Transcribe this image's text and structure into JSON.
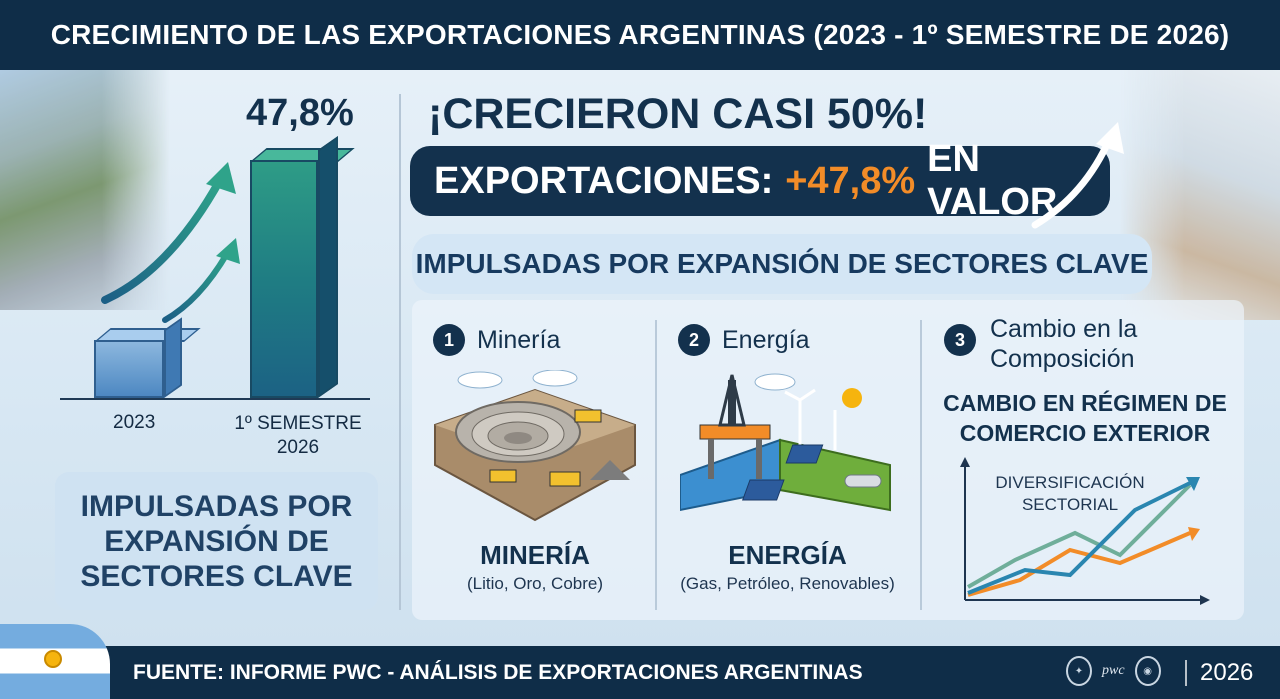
{
  "header": {
    "title": "CRECIMIENTO DE LAS EXPORTACIONES ARGENTINAS (2023 - 1º SEMESTRE DE 2026)"
  },
  "left_chart": {
    "value_label": "47,8%",
    "bars": [
      {
        "label": "2023"
      },
      {
        "label": "1º SEMESTRE 2026"
      }
    ],
    "box_text": "IMPULSADAS POR EXPANSIÓN DE SECTORES CLAVE"
  },
  "headline": "¡CRECIERON CASI 50%!",
  "exports_pill": {
    "prefix": "EXPORTACIONES:",
    "value": "+47,8%",
    "suffix": "EN VALOR"
  },
  "sectors_banner": "IMPULSADAS POR EXPANSIÓN DE SECTORES CLAVE",
  "sectors": [
    {
      "num": "1",
      "title": "Minería",
      "name": "MINERÍA",
      "sub": "(Litio, Oro, Cobre)"
    },
    {
      "num": "2",
      "title": "Energía",
      "name": "ENERGÍA",
      "sub": "(Gas, Petróleo, Renovables)"
    },
    {
      "num": "3",
      "title": "Cambio en la Composición",
      "name": "CAMBIO EN RÉGIMEN DE COMERCIO EXTERIOR",
      "sub": "DIVERSIFICACIÓN SECTORIAL"
    }
  ],
  "footer": {
    "source": "FUENTE: INFORME PWC - ANÁLISIS DE EXPORTACIONES ARGENTINAS",
    "logo_text": "pwc",
    "year": "2026"
  },
  "colors": {
    "navy": "#0f2d48",
    "accent_orange": "#f28c28",
    "teal": "#2e9c86",
    "light_blue": "#d4e6f5"
  }
}
